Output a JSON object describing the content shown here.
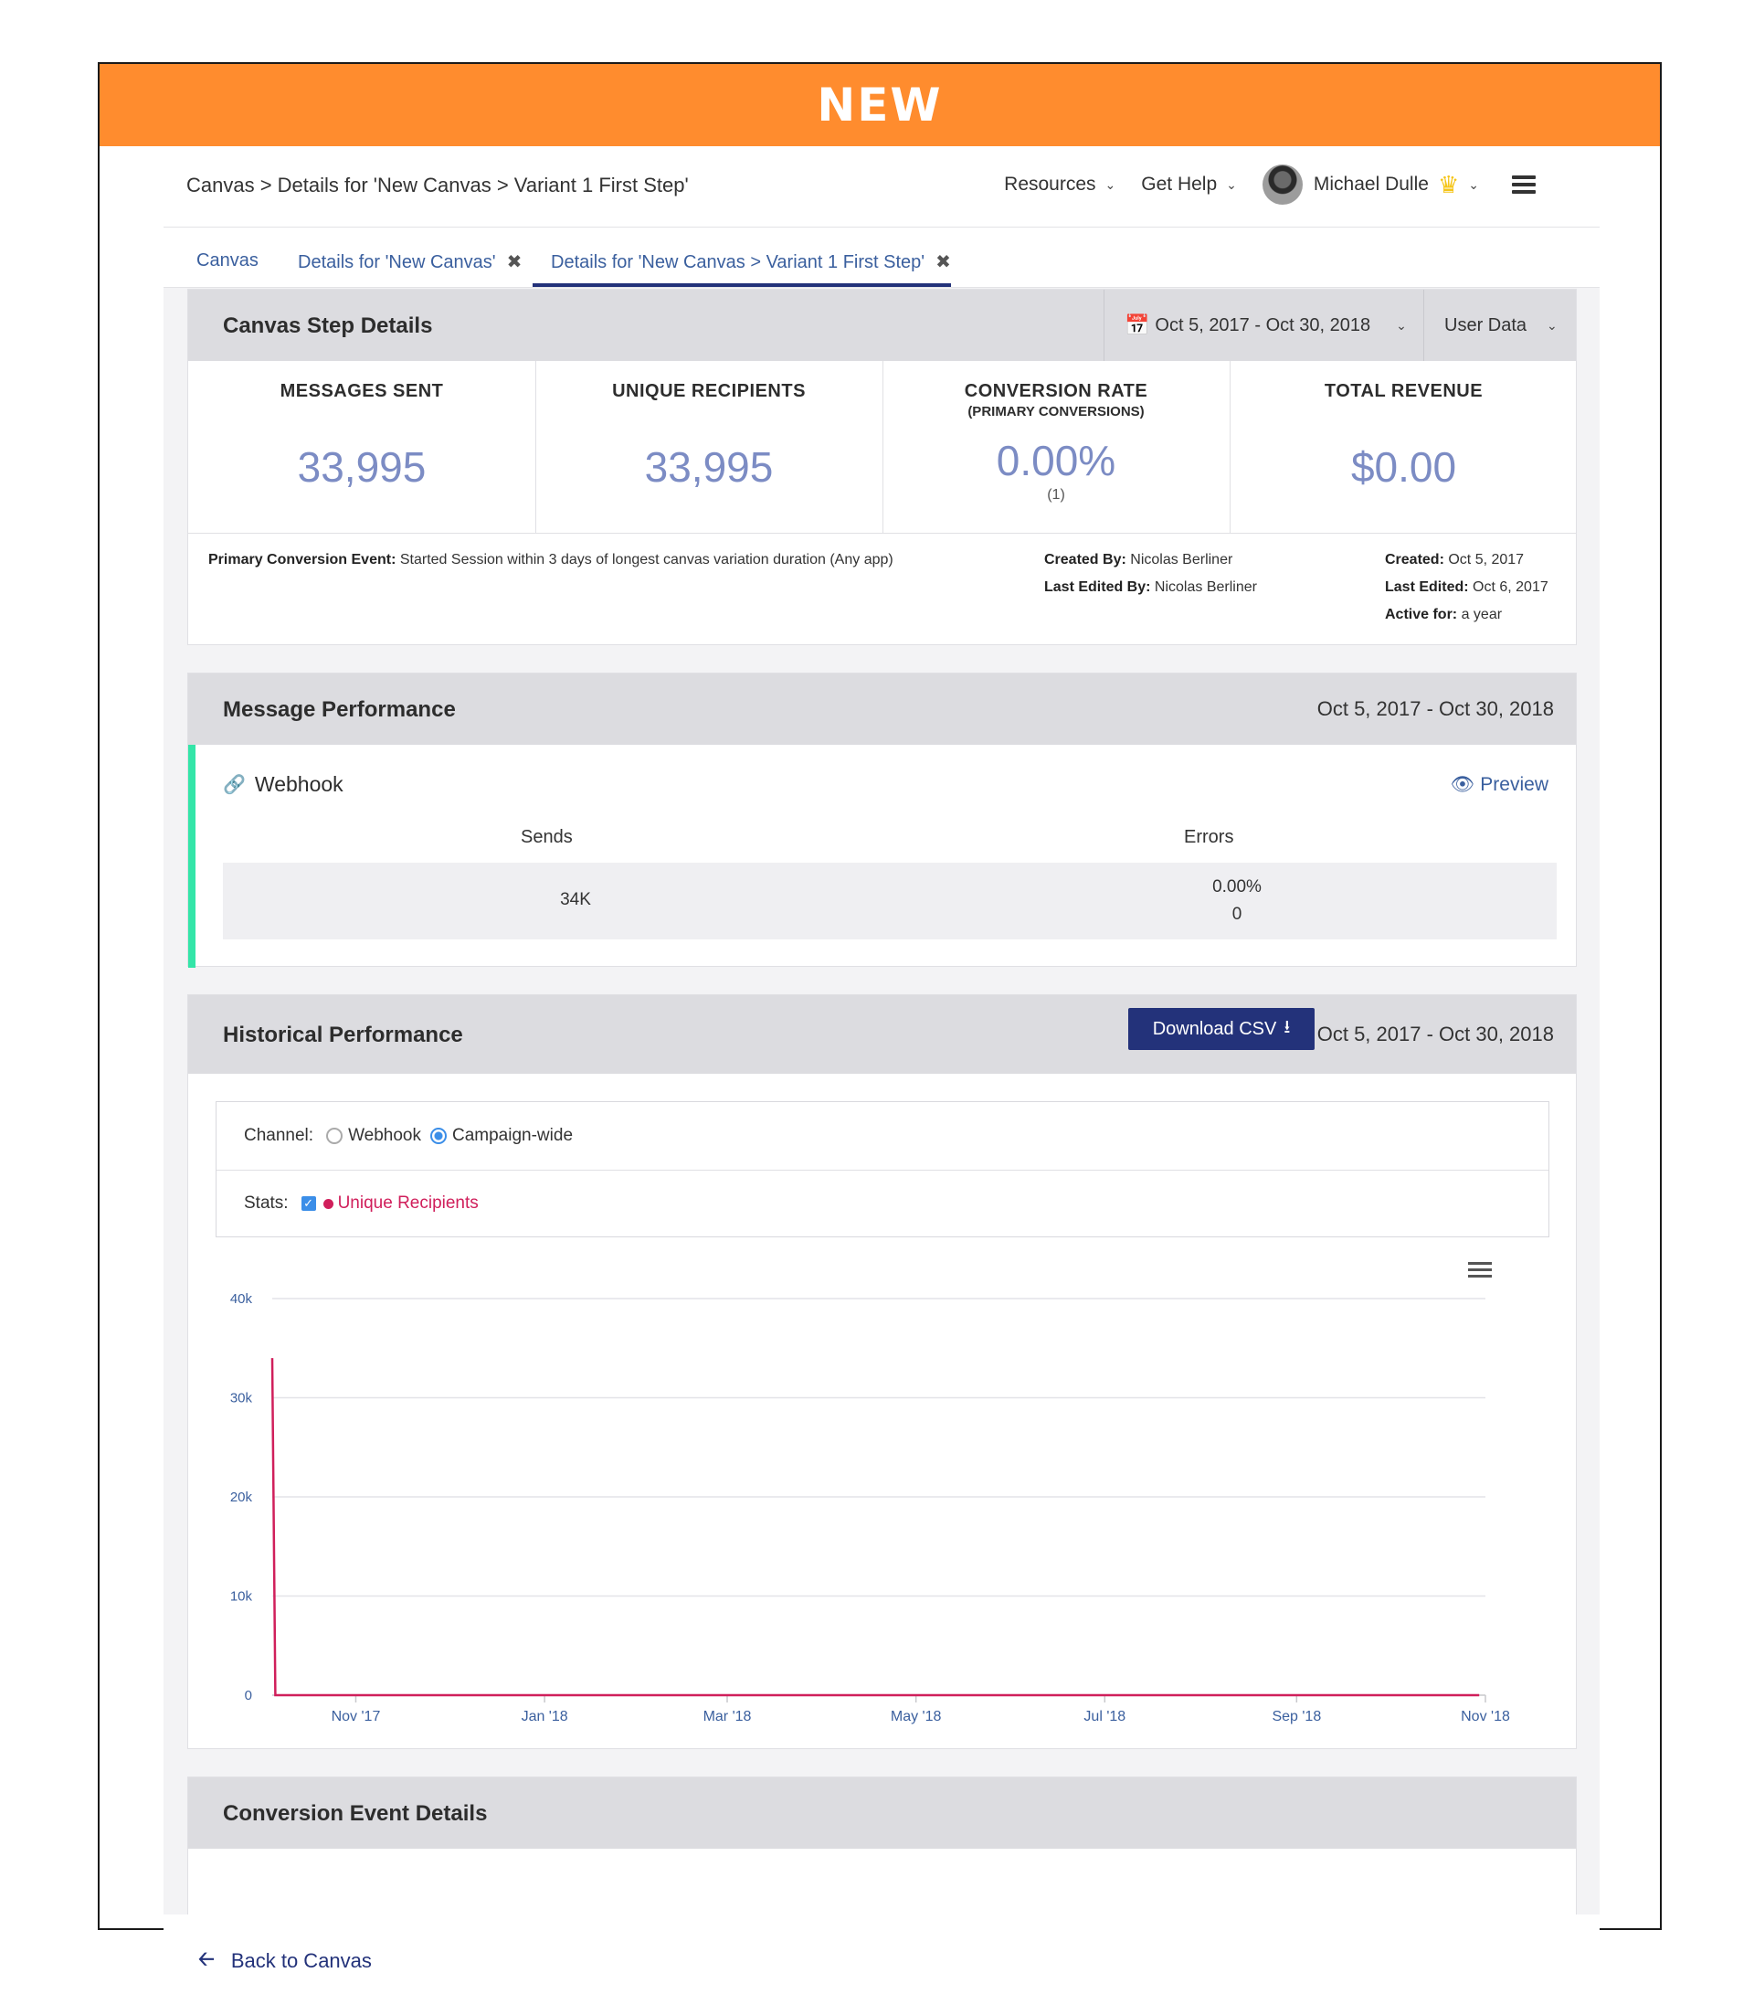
{
  "banner": {
    "label": "NEW"
  },
  "breadcrumb": "Canvas > Details for 'New Canvas > Variant 1 First Step'",
  "nav": {
    "resources": "Resources",
    "get_help": "Get Help",
    "user_name": "Michael Dulle"
  },
  "tabs": [
    {
      "label": "Canvas"
    },
    {
      "label": "Details for 'New Canvas'"
    },
    {
      "label": "Details for 'New Canvas > Variant 1 First Step'"
    }
  ],
  "step_details": {
    "title": "Canvas Step Details",
    "date_range": "Oct 5, 2017 - Oct 30, 2018",
    "data_select": "User Data",
    "stats": [
      {
        "label": "MESSAGES SENT",
        "value": "33,995"
      },
      {
        "label": "UNIQUE RECIPIENTS",
        "value": "33,995"
      },
      {
        "label": "CONVERSION RATE",
        "sub": "(PRIMARY CONVERSIONS)",
        "value": "0.00%",
        "foot": "(1)"
      },
      {
        "label": "TOTAL REVENUE",
        "value": "$0.00"
      }
    ],
    "meta": {
      "primary_label": "Primary Conversion Event:",
      "primary_value": "Started Session within 3 days of longest canvas variation duration (Any app)",
      "created_by_label": "Created By:",
      "created_by": "Nicolas Berliner",
      "last_edited_by_label": "Last Edited By:",
      "last_edited_by": "Nicolas Berliner",
      "created_label": "Created:",
      "created": "Oct 5, 2017",
      "last_edited_label": "Last Edited:",
      "last_edited": "Oct 6, 2017",
      "active_for_label": "Active for:",
      "active_for": "a year"
    }
  },
  "message_performance": {
    "title": "Message Performance",
    "date_range": "Oct 5, 2017 - Oct 30, 2018",
    "channel": "Webhook",
    "preview": "Preview",
    "sends_label": "Sends",
    "errors_label": "Errors",
    "sends": "34K",
    "errors_pct": "0.00%",
    "errors_count": "0"
  },
  "historical": {
    "title": "Historical Performance",
    "download": "Download CSV",
    "date_range": "Oct 5, 2017 - Oct 30, 2018",
    "channel_label": "Channel:",
    "channel_options": [
      "Webhook",
      "Campaign-wide"
    ],
    "channel_selected": "Campaign-wide",
    "stats_label": "Stats:",
    "stat_series": "Unique Recipients"
  },
  "conversion": {
    "title": "Conversion Event Details"
  },
  "back": {
    "label": "Back to Canvas"
  },
  "colors": {
    "banner": "#FF8C2E",
    "accent": "#23327A",
    "series": "#D01F5B",
    "stat_value": "#7C8CC4",
    "webhook_bar": "#33E5A8"
  },
  "chart_data": {
    "type": "line",
    "ylim": [
      0,
      40000
    ],
    "yticks": [
      "0",
      "10k",
      "20k",
      "30k",
      "40k"
    ],
    "xticks": [
      "Nov '17",
      "Jan '18",
      "Mar '18",
      "May '18",
      "Jul '18",
      "Sep '18",
      "Nov '18"
    ],
    "series": [
      {
        "name": "Unique Recipients",
        "x": [
          "2017-10-05",
          "2017-10-06",
          "2017-10-07",
          "2018-10-30"
        ],
        "values": [
          34000,
          0,
          0,
          0
        ]
      }
    ]
  }
}
